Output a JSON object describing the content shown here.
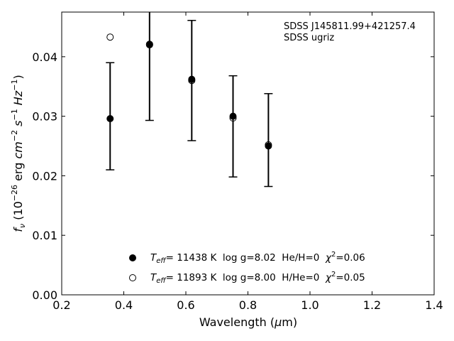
{
  "chart_data": {
    "type": "scatter",
    "xlabel_main": "Wavelength (",
    "xlabel_mu": "μ",
    "xlabel_unit": "m)",
    "ylabel": {
      "f": "f",
      "nu": "ν",
      "open": " (10",
      "exp26": "−26",
      "erg": " erg ",
      "cm": "cm",
      "cmexp": "−2",
      "s": " s",
      "sexp": "−1",
      "hz": " Hz",
      "hzexp": "−1",
      "close": ")"
    },
    "xlim": [
      0.2,
      1.4
    ],
    "ylim": [
      0.0,
      0.0475
    ],
    "xticks": [
      0.2,
      0.4,
      0.6,
      0.8,
      1.0,
      1.2,
      1.4
    ],
    "xtick_labels": [
      "0.2",
      "0.4",
      "0.6",
      "0.8",
      "1.0",
      "1.2",
      "1.4"
    ],
    "yticks": [
      0.0,
      0.01,
      0.02,
      0.03,
      0.04
    ],
    "ytick_labels": [
      "0.00",
      "0.01",
      "0.02",
      "0.03",
      "0.04"
    ],
    "annotation": [
      "SDSS J145811.99+421257.4",
      "SDSS ugriz"
    ],
    "observed": {
      "x": [
        0.356,
        0.483,
        0.619,
        0.752,
        0.866
      ],
      "y": [
        0.03,
        0.0439,
        0.036,
        0.0283,
        0.026
      ],
      "yerr": [
        0.009,
        0.0146,
        0.0101,
        0.0085,
        0.0078
      ]
    },
    "series": [
      {
        "name": "He/H=0",
        "marker": "filled",
        "x": [
          0.356,
          0.483,
          0.619,
          0.752,
          0.866
        ],
        "y": [
          0.0296,
          0.042,
          0.0362,
          0.03,
          0.025
        ]
      },
      {
        "name": "H/He=0",
        "marker": "open",
        "x": [
          0.356,
          0.483,
          0.619,
          0.752,
          0.866
        ],
        "y": [
          0.0433,
          0.0421,
          0.036,
          0.0297,
          0.0252
        ]
      }
    ],
    "legend": [
      {
        "teff_T": "T",
        "teff_sub": "eff",
        "rest": "= 11438 K  log g=8.02  He/H=0  ",
        "chi": "χ",
        "chi_exp": "2",
        "chi_val": "=0.06"
      },
      {
        "teff_T": "T",
        "teff_sub": "eff",
        "rest": "= 11893 K  log g=8.00  H/He=0  ",
        "chi": "χ",
        "chi_exp": "2",
        "chi_val": "=0.05"
      }
    ],
    "legend_position": "lower-center",
    "grid": false,
    "colors": {
      "marker": "#000000",
      "axes": "#000000"
    }
  }
}
